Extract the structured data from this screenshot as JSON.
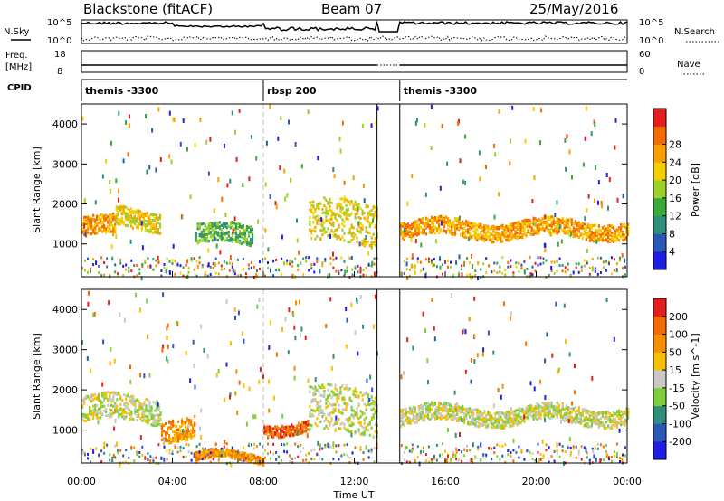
{
  "header": {
    "station": "Blackstone (fitACF)",
    "beam": "Beam 07",
    "date": "25/May/2016"
  },
  "top_panels": {
    "nsky_label": "N.Sky",
    "nsky_ticks": [
      "10^5",
      "10^0"
    ],
    "nsearch_label": "N.Search",
    "nsearch_ticks": [
      "10^5",
      "10^0"
    ],
    "freq_label": "Freq.",
    "freq_unit": "[MHz]",
    "freq_ticks": [
      "18",
      "8"
    ],
    "nave_label": "Nave",
    "nave_ticks": [
      "60",
      "0"
    ],
    "cpid_label": "CPID",
    "cpid_segments": [
      {
        "label": "themis -3300",
        "start_h": 0.0
      },
      {
        "label": "rbsp 200",
        "start_h": 8.0
      },
      {
        "label": "themis -3300",
        "start_h": 14.0
      }
    ]
  },
  "chart_data": [
    {
      "type": "heatmap",
      "panel": "power",
      "ylabel": "Slant Range [km]",
      "xlim_hours": [
        0,
        24
      ],
      "ylim": [
        180,
        4500
      ],
      "y_ticks": [
        "1000",
        "2000",
        "3000",
        "4000"
      ],
      "colorbar_label": "Power [dB]",
      "colorbar_ticks": [
        "4",
        "8",
        "12",
        "16",
        "20",
        "24",
        "28"
      ],
      "colors": [
        "#1e1ee6",
        "#2a58b8",
        "#2f8f7a",
        "#3aaa3a",
        "#9bd22a",
        "#f4d000",
        "#f7a000",
        "#f46b00",
        "#e61e1e"
      ],
      "data_gap_hours": [
        13.0,
        14.0
      ],
      "bands": [
        {
          "x0": 0.0,
          "x1": 1.5,
          "range": [
            1100,
            1800
          ],
          "level": 6
        },
        {
          "x0": 1.5,
          "x1": 3.5,
          "range": [
            1300,
            2000
          ],
          "level": 5
        },
        {
          "x0": 5.0,
          "x1": 7.5,
          "range": [
            900,
            1600
          ],
          "level": 3
        },
        {
          "x0": 10.0,
          "x1": 13.0,
          "range": [
            800,
            2300
          ],
          "level": 5
        },
        {
          "x0": 14.0,
          "x1": 24.0,
          "range": [
            1100,
            1700
          ],
          "level": 6
        }
      ]
    },
    {
      "type": "heatmap",
      "panel": "velocity",
      "ylabel": "Slant Range [km]",
      "xlabel": "Time UT",
      "xlim_hours": [
        0,
        24
      ],
      "x_ticks": [
        "00:00",
        "04:00",
        "08:00",
        "12:00",
        "16:00",
        "20:00",
        "00:00"
      ],
      "ylim": [
        180,
        4500
      ],
      "y_ticks": [
        "1000",
        "2000",
        "3000",
        "4000"
      ],
      "colorbar_label": "Velocity [m s^-1]",
      "colorbar_ticks": [
        "200",
        "100",
        "50",
        "15",
        "-15",
        "-50",
        "-100",
        "-200"
      ],
      "colors": [
        "#1e1ee6",
        "#2a58b8",
        "#2f8f7a",
        "#7fcf3a",
        "#c8c8c8",
        "#f7c000",
        "#f79000",
        "#f46b00",
        "#e61e1e"
      ],
      "data_gap_hours": [
        13.0,
        14.0
      ],
      "bands": [
        {
          "x0": 0.0,
          "x1": 3.5,
          "range": [
            1100,
            2000
          ],
          "level": 4
        },
        {
          "x0": 3.5,
          "x1": 5.0,
          "range": [
            700,
            1500
          ],
          "level": 6
        },
        {
          "x0": 5.0,
          "x1": 8.0,
          "range": [
            200,
            500
          ],
          "level": 6
        },
        {
          "x0": 8.0,
          "x1": 10.0,
          "range": [
            900,
            1300
          ],
          "level": 7
        },
        {
          "x0": 10.0,
          "x1": 13.0,
          "range": [
            700,
            2300
          ],
          "level": 4
        },
        {
          "x0": 14.0,
          "x1": 24.0,
          "range": [
            1100,
            1700
          ],
          "level": 4
        }
      ]
    }
  ]
}
